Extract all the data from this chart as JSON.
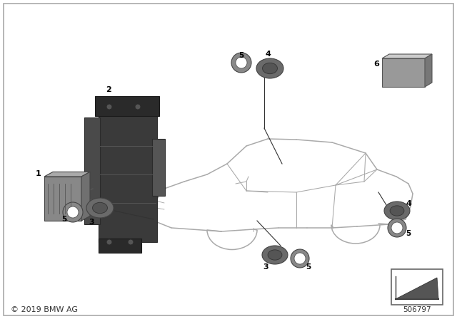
{
  "bg_color": "#ffffff",
  "copyright": "© 2019 BMW AG",
  "part_number": "506797",
  "line_color": "#555555",
  "car_color": "#bbbbbb",
  "part_dark": "#4a4a4a",
  "part_mid": "#7a7a7a",
  "part_light": "#aaaaaa",
  "sensor_color": "#6a6a6a",
  "ring_color": "#888888"
}
